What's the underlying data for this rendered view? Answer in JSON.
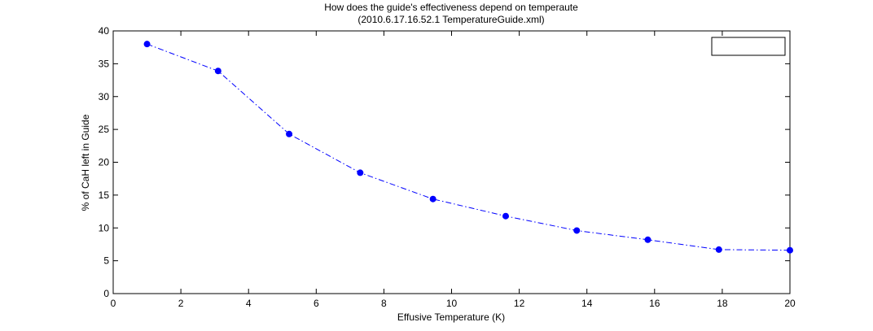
{
  "chart_data": {
    "type": "line",
    "title": "How does the guide's effectiveness depend on temperaute",
    "subtitle": "(2010.6.17.16.52.1 TemperatureGuide.xml)",
    "xlabel": "Effusive Temperature (K)",
    "ylabel": "% of CaH left in Guide",
    "xlim": [
      0,
      20
    ],
    "ylim": [
      0,
      40
    ],
    "x_ticks": [
      "0",
      "2",
      "4",
      "6",
      "8",
      "10",
      "12",
      "14",
      "16",
      "18",
      "20"
    ],
    "y_ticks": [
      "0",
      "5",
      "10",
      "15",
      "20",
      "25",
      "30",
      "35",
      "40"
    ],
    "grid": false,
    "legend": {
      "placement": "top-right",
      "entries": []
    },
    "series": [
      {
        "color": "#0000ff",
        "line_style": "dash-dot",
        "marker": "filled-circle",
        "x": [
          1.0,
          3.1,
          5.2,
          7.3,
          9.45,
          11.6,
          13.7,
          15.8,
          17.9,
          20.0
        ],
        "y": [
          38.0,
          33.9,
          24.3,
          18.4,
          14.4,
          11.8,
          9.6,
          8.2,
          6.7,
          6.6
        ]
      }
    ]
  }
}
